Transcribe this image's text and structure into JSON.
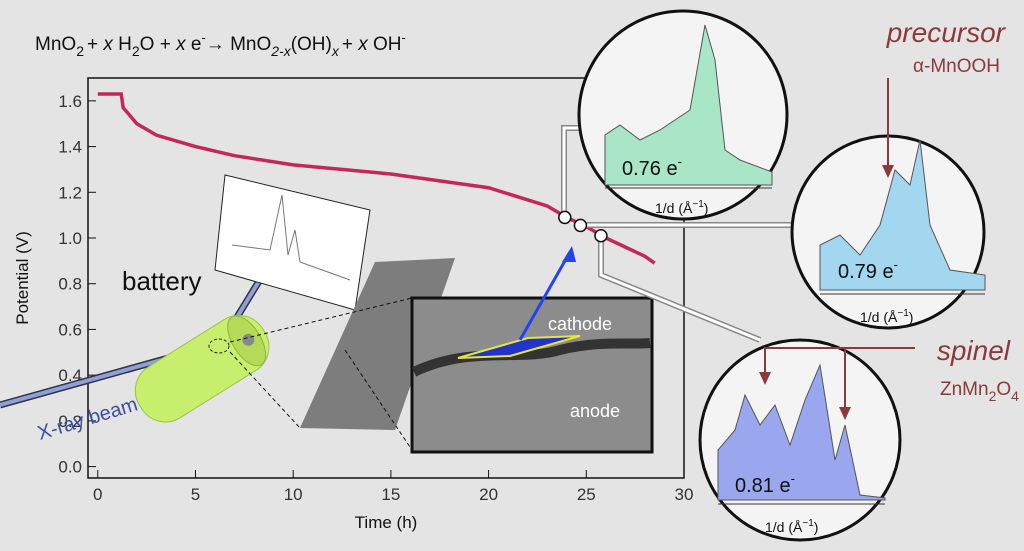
{
  "chart_data": {
    "type": "line",
    "equation": [
      "MnO",
      "2",
      "+ ",
      "x",
      " H",
      "2",
      "O + ",
      "x",
      " e",
      "-",
      "→ MnO",
      "2-x",
      "(OH)",
      "x",
      "+ ",
      "x",
      " OH",
      "-"
    ],
    "x_label": "Time (h)",
    "y_label": "Potential (V)",
    "xlim": [
      -0.5,
      30
    ],
    "ylim": [
      -0.05,
      1.7
    ],
    "xticks": [
      0,
      5,
      10,
      15,
      20,
      25,
      30
    ],
    "yticks": [
      {
        "value": 0,
        "label": "0.0"
      },
      0.2,
      0.4,
      0.6,
      0.8,
      {
        "value": 1,
        "label": "1.0"
      },
      1.2,
      1.4,
      1.6
    ],
    "series": [
      {
        "color": "#c2285a",
        "x": [
          0,
          1.2,
          1.3,
          1.5,
          2,
          3,
          5,
          7,
          10,
          15,
          20,
          23,
          24,
          25,
          26,
          27,
          28,
          28.5
        ],
        "values": [
          1.63,
          1.63,
          1.57,
          1.55,
          1.5,
          1.45,
          1.4,
          1.36,
          1.32,
          1.28,
          1.22,
          1.14,
          1.09,
          1.05,
          1.0,
          0.96,
          0.92,
          0.89
        ]
      }
    ],
    "markers": {
      "x": [
        23.9,
        24.7,
        25.75
      ],
      "y": [
        1.09,
        1.055,
        1.01
      ]
    },
    "insets": [
      {
        "label": "0.76 e",
        "charge": "-",
        "axis": [
          "1/d (Å",
          "−1",
          ")"
        ]
      },
      {
        "label": "0.79 e",
        "charge": "-",
        "axis": [
          "1/d (Å",
          "−1",
          ")"
        ]
      },
      {
        "label": "0.81 e",
        "charge": "-",
        "axis": [
          "1/d (Å",
          "−1",
          ")"
        ]
      }
    ],
    "annotations": {
      "precursor": "precursor",
      "precursor_formula": "α-MnOOH",
      "spinel": "spinel",
      "spinel_formula": [
        "ZnMn",
        "2",
        "O",
        "4"
      ],
      "battery": "battery",
      "beam": "X-ray beam",
      "cathode": "cathode",
      "anode": "anode"
    }
  }
}
